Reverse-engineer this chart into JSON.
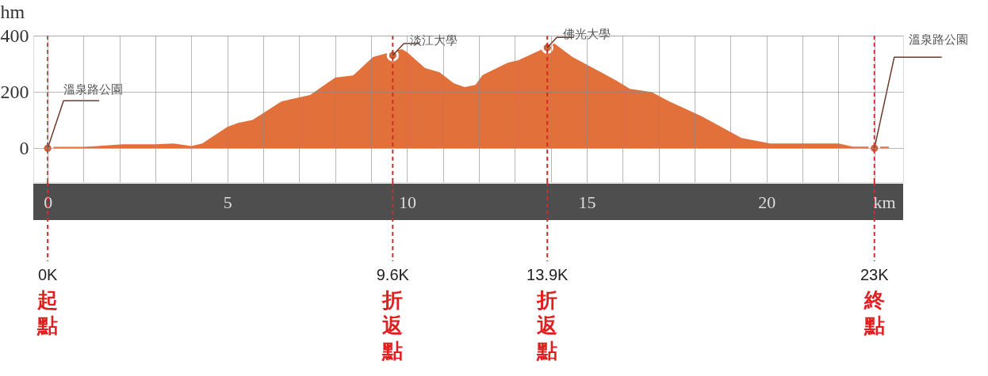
{
  "chart_data": {
    "type": "area",
    "xlabel": "km",
    "ylabel": "hm",
    "xlim": [
      -0.4,
      23.8
    ],
    "xticks": [
      0,
      {
        "value": 1,
        "label": null
      },
      {
        "value": 2,
        "label": null
      },
      {
        "value": 3,
        "label": null
      },
      {
        "value": 4,
        "label": null
      },
      5,
      {
        "value": 6,
        "label": null
      },
      {
        "value": 7,
        "label": null
      },
      {
        "value": 8,
        "label": null
      },
      {
        "value": 9,
        "label": null
      },
      10,
      {
        "value": 11,
        "label": null
      },
      {
        "value": 12,
        "label": null
      },
      {
        "value": 13,
        "label": null
      },
      {
        "value": 14,
        "label": null
      },
      15,
      {
        "value": 16,
        "label": null
      },
      {
        "value": 17,
        "label": null
      },
      {
        "value": 18,
        "label": null
      },
      {
        "value": 19,
        "label": null
      },
      20,
      {
        "value": 21,
        "label": null
      },
      {
        "value": 22,
        "label": null
      },
      {
        "value": 23,
        "label": null
      }
    ],
    "ylim": [
      -120,
      400
    ],
    "yticks": [
      0,
      200,
      400
    ],
    "grid": true,
    "series": [
      {
        "color": "#e2703a",
        "x": [
          0,
          1,
          1.3,
          2.1,
          3,
          3.5,
          4,
          4.3,
          5,
          5.3,
          5.7,
          6.5,
          6.8,
          7.3,
          8,
          8.5,
          9.05,
          9.85,
          10,
          10.5,
          10.9,
          11.3,
          11.6,
          11.9,
          12.1,
          12.8,
          13.1,
          14.1,
          14.6,
          15.8,
          16.2,
          16.8,
          17.3,
          18.2,
          19.3,
          20.1,
          22,
          22.4,
          23.4
        ],
        "values": [
          5,
          5,
          7,
          14,
          14,
          17,
          8,
          17,
          76,
          90,
          101,
          166,
          175,
          189,
          251,
          259,
          324,
          352,
          341,
          285,
          270,
          231,
          217,
          225,
          260,
          304,
          313,
          372,
          324,
          242,
          211,
          200,
          166,
          113,
          37,
          17,
          17,
          6,
          6
        ]
      },
      {
        "type": "scatter",
        "color": "#c8643a",
        "marker": "circle",
        "x": [
          0,
          9.6,
          13.9,
          23
        ],
        "values": [
          0,
          330,
          357,
          0
        ]
      }
    ],
    "ref_lines": [
      {
        "axis": "x",
        "value": 0,
        "label": "0K",
        "color": "#d42a2a",
        "line_style": "dashed"
      },
      {
        "axis": "x",
        "value": 9.6,
        "label": "9.6K",
        "color": "#d42a2a",
        "line_style": "dashed"
      },
      {
        "axis": "x",
        "value": 13.9,
        "label": "13.9K",
        "color": "#d42a2a",
        "line_style": "dashed"
      },
      {
        "axis": "x",
        "value": 23,
        "label": "23K",
        "color": "#d42a2a",
        "line_style": "dashed"
      }
    ],
    "annotations": [
      {
        "text": "溫泉路公園",
        "x": 0,
        "y": 0
      },
      {
        "text": "淡江大學",
        "x": 9.6,
        "y": 330
      },
      {
        "text": "佛光大學",
        "x": 13.9,
        "y": 357
      },
      {
        "text": "溫泉路公園",
        "x": 23,
        "y": 0
      },
      "起點",
      "折返點",
      "折返點",
      "終點"
    ]
  }
}
